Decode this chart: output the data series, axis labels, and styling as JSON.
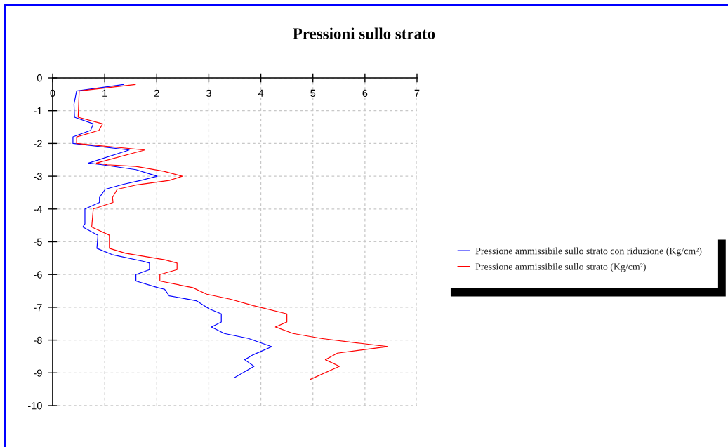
{
  "chart_data": {
    "type": "line",
    "title": "Pressioni sullo strato",
    "xlim": [
      0,
      7
    ],
    "xticks": [
      0,
      1,
      2,
      3,
      4,
      5,
      6,
      7
    ],
    "ylim": [
      -10,
      0
    ],
    "yticks": [
      0,
      -1,
      -2,
      -3,
      -4,
      -5,
      -6,
      -7,
      -8,
      -9,
      -10
    ],
    "grid": true,
    "legend": "right",
    "series": [
      {
        "name": "Pressione ammissibile sullo strato con riduzione (Kg/cm²)",
        "color": "#0000ff",
        "x": [
          1.36,
          0.46,
          0.41,
          0.42,
          0.78,
          0.73,
          0.39,
          0.39,
          1.47,
          0.69,
          0.95,
          1.6,
          1.8,
          2.01,
          1.69,
          1.35,
          1.01,
          0.9,
          0.9,
          0.62,
          0.62,
          0.58,
          0.87,
          0.85,
          1.16,
          1.75,
          1.86,
          1.86,
          1.6,
          1.6,
          2.02,
          2.15,
          2.24,
          2.76,
          3.01,
          3.24,
          3.24,
          3.05,
          3.3,
          3.76,
          4.21,
          3.85,
          3.69,
          3.87,
          3.49
        ],
        "values": [
          -0.2,
          -0.4,
          -0.8,
          -1.2,
          -1.4,
          -1.6,
          -1.8,
          -2.0,
          -2.2,
          -2.6,
          -2.65,
          -2.8,
          -2.9,
          -3.0,
          -3.13,
          -3.25,
          -3.4,
          -3.65,
          -3.8,
          -4.0,
          -4.45,
          -4.55,
          -4.8,
          -5.2,
          -5.4,
          -5.6,
          -5.65,
          -5.85,
          -6.0,
          -6.2,
          -6.4,
          -6.45,
          -6.65,
          -6.8,
          -7.05,
          -7.2,
          -7.45,
          -7.6,
          -7.8,
          -7.95,
          -8.2,
          -8.45,
          -8.6,
          -8.8,
          -9.15
        ]
      },
      {
        "name": "Pressione ammissibile sullo strato (Kg/cm²)",
        "color": "#ff0000",
        "x": [
          1.59,
          0.51,
          0.49,
          0.96,
          0.89,
          0.46,
          0.46,
          1.77,
          0.84,
          1.05,
          1.6,
          2.14,
          2.49,
          2.24,
          1.6,
          1.24,
          1.15,
          1.16,
          0.78,
          0.75,
          1.09,
          1.09,
          1.4,
          2.15,
          2.39,
          2.39,
          2.06,
          2.06,
          2.69,
          2.96,
          3.41,
          3.86,
          4.5,
          4.5,
          4.28,
          4.62,
          5.16,
          5.92,
          6.44,
          6.05,
          5.47,
          5.24,
          5.51,
          4.95
        ],
        "values": [
          -0.2,
          -0.4,
          -1.2,
          -1.4,
          -1.6,
          -1.8,
          -2.0,
          -2.2,
          -2.6,
          -2.65,
          -2.7,
          -2.85,
          -3.0,
          -3.13,
          -3.27,
          -3.4,
          -3.65,
          -3.8,
          -4.0,
          -4.55,
          -4.8,
          -5.2,
          -5.35,
          -5.55,
          -5.65,
          -5.85,
          -6.0,
          -6.2,
          -6.4,
          -6.6,
          -6.75,
          -6.95,
          -7.2,
          -7.45,
          -7.6,
          -7.8,
          -7.95,
          -8.1,
          -8.2,
          -8.28,
          -8.4,
          -8.6,
          -8.8,
          -9.2
        ]
      }
    ]
  }
}
